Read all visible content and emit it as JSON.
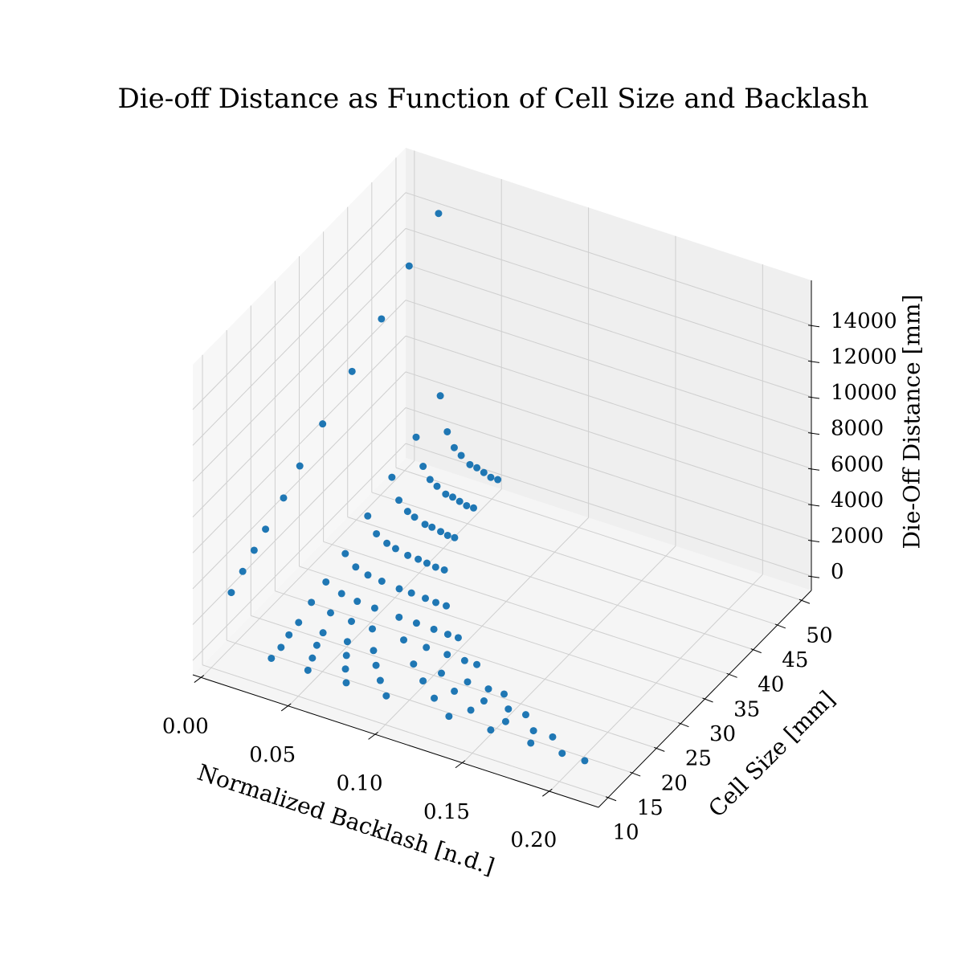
{
  "chart_data": {
    "type": "scatter3d",
    "title": "Die-off Distance as Function of Cell Size and Backlash",
    "xlabel": "Normalized Backlash [n.d.]",
    "ylabel": "Cell Size [mm]",
    "zlabel": "Die-Off Distance [mm]",
    "xlim": [
      -0.005,
      0.228
    ],
    "ylim": [
      8,
      52
    ],
    "zlim": [
      -800,
      16500
    ],
    "xticks": [
      {
        "value": 0,
        "label": "0.00"
      },
      {
        "value": 0.05,
        "label": "0.05"
      },
      {
        "value": 0.1,
        "label": "0.10"
      },
      {
        "value": 0.15,
        "label": "0.15"
      },
      {
        "value": 0.2,
        "label": "0.20"
      }
    ],
    "yticks": [
      10,
      15,
      20,
      25,
      30,
      35,
      40,
      45,
      50
    ],
    "zticks": [
      0,
      2000,
      4000,
      6000,
      8000,
      10000,
      12000,
      14000
    ],
    "grid": true,
    "color": "#1f77b4",
    "series": [
      {
        "x": [
          0.006,
          0.007,
          0.008,
          0.009,
          0.011,
          0.012,
          0.014,
          0.017,
          0.02,
          0.022,
          0.025
        ],
        "y": [
          12,
          14,
          16,
          18,
          21,
          24,
          28,
          33,
          38,
          43,
          48
        ],
        "z": [
          3040,
          3700,
          4360,
          5020,
          6000,
          6990,
          8300,
          9950,
          11600,
          13240,
          14890
        ]
      },
      {
        "x": [
          0.029,
          0.029,
          0.028,
          0.028,
          0.027,
          0.027,
          0.027,
          0.026,
          0.026,
          0.026,
          0.026
        ],
        "y": [
          12,
          14,
          16,
          18,
          21,
          24,
          28,
          33,
          38,
          43,
          48
        ],
        "z": [
          100,
          161,
          272,
          416,
          681,
          993,
          1476,
          2169,
          2955,
          3815,
          4750
        ]
      },
      {
        "x": [
          0.05,
          0.047,
          0.044,
          0.042,
          0.038,
          0.036,
          0.033,
          0.031,
          0.03,
          0.03,
          0.03
        ],
        "y": [
          12,
          14,
          16,
          18,
          21,
          24,
          28,
          33,
          38,
          43,
          48
        ],
        "z": [
          100,
          136,
          202,
          288,
          446,
          632,
          920,
          1333,
          1801,
          2313,
          2870
        ]
      },
      {
        "x": [
          0.072,
          0.066,
          0.061,
          0.056,
          0.05,
          0.045,
          0.04,
          0.037,
          0.035,
          0.034,
          0.034
        ],
        "y": [
          12,
          14,
          16,
          18,
          21,
          24,
          28,
          33,
          38,
          43,
          48
        ],
        "z": [
          100,
          126,
          174,
          237,
          351,
          486,
          695,
          994,
          1334,
          1706,
          2110
        ]
      },
      {
        "x": [
          0.095,
          0.086,
          0.078,
          0.071,
          0.062,
          0.055,
          0.048,
          0.042,
          0.039,
          0.038,
          0.038
        ],
        "y": [
          12,
          14,
          16,
          18,
          21,
          24,
          28,
          33,
          38,
          43,
          48
        ],
        "z": [
          100,
          122,
          163,
          216,
          313,
          426,
          603,
          857,
          1144,
          1458,
          1800
        ]
      },
      {
        "x": [
          0.131,
          0.117,
          0.105,
          0.094,
          0.08,
          0.069,
          0.058,
          0.049,
          0.045,
          0.043,
          0.043
        ],
        "y": [
          12,
          14,
          16,
          18,
          21,
          24,
          28,
          33,
          38,
          43,
          48
        ],
        "z": [
          100,
          118,
          150,
          192,
          269,
          359,
          500,
          701,
          929,
          1179,
          1450
        ]
      },
      {
        "x": [
          0.155,
          0.138,
          0.123,
          0.11,
          0.093,
          0.079,
          0.065,
          0.055,
          0.049,
          0.047,
          0.047
        ],
        "y": [
          12,
          14,
          16,
          18,
          21,
          24,
          28,
          33,
          38,
          43,
          48
        ],
        "z": [
          100,
          117,
          148,
          188,
          263,
          350,
          485,
          679,
          898,
          1139,
          1400
        ]
      },
      {
        "x": [
          0.178,
          0.158,
          0.14,
          0.125,
          0.105,
          0.089,
          0.073,
          0.06,
          0.054,
          0.051,
          0.051
        ],
        "y": [
          12,
          14,
          16,
          18,
          21,
          24,
          28,
          33,
          38,
          43,
          48
        ],
        "z": [
          100,
          115,
          143,
          179,
          245,
          323,
          443,
          616,
          812,
          1027,
          1260
        ]
      },
      {
        "x": [
          0.196,
          0.174,
          0.154,
          0.137,
          0.115,
          0.097,
          0.079,
          0.065,
          0.058,
          0.055,
          0.055
        ],
        "y": [
          12,
          14,
          16,
          18,
          21,
          24,
          28,
          33,
          38,
          43,
          48
        ],
        "z": [
          100,
          113,
          138,
          169,
          228,
          296,
          402,
          554,
          726,
          915,
          1120
        ]
      },
      {
        "x": [
          0.209,
          0.185,
          0.164,
          0.146,
          0.122,
          0.103,
          0.085,
          0.07,
          0.062,
          0.059,
          0.059
        ],
        "y": [
          12,
          14,
          16,
          18,
          21,
          24,
          28,
          33,
          38,
          43,
          48
        ],
        "z": [
          100,
          113,
          138,
          169,
          228,
          296,
          402,
          554,
          726,
          915,
          1120
        ]
      }
    ]
  }
}
